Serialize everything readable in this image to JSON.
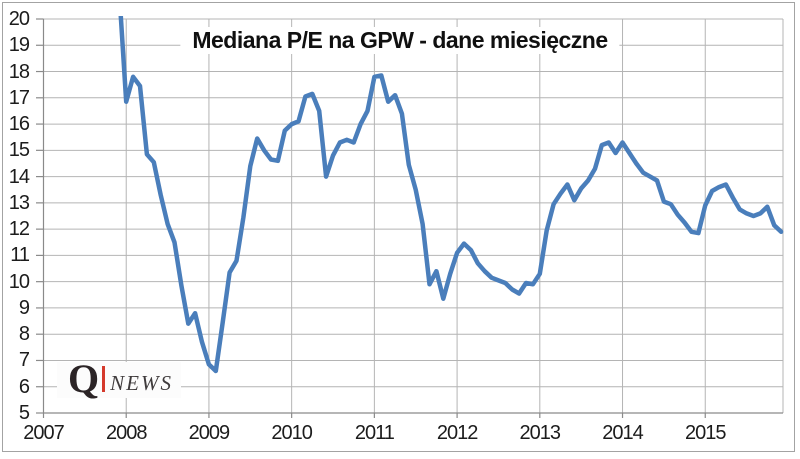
{
  "title": "Mediana P/E na GPW - dane miesięczne",
  "logo": {
    "q": "Q",
    "news": "NEWS",
    "bar_color": "#d53a2c"
  },
  "colors": {
    "line": "#4A7EBB",
    "grid": "#b4b4b4",
    "axis": "#8a8a8a",
    "border": "#a3a3a3",
    "label": "#1c1c1c"
  },
  "chart_data": {
    "type": "line",
    "title": "Mediana P/E na GPW - dane miesięczne",
    "xlabel": "",
    "ylabel": "",
    "grid": true,
    "legend": "none",
    "xlim": [
      2007,
      2015.94
    ],
    "ylim": [
      5,
      20
    ],
    "x_ticks": [
      2007,
      2008,
      2009,
      2010,
      2011,
      2012,
      2013,
      2014,
      2015
    ],
    "y_ticks": [
      5,
      6,
      7,
      8,
      9,
      10,
      11,
      12,
      13,
      14,
      15,
      16,
      17,
      18,
      19,
      20
    ],
    "clip_to_plot": true,
    "series": [
      {
        "name": "Mediana P/E",
        "start": "2007-12",
        "frequency": "monthly",
        "line_width": 4.5,
        "values": [
          21.0,
          16.85,
          17.8,
          17.45,
          14.85,
          14.55,
          13.3,
          12.2,
          11.5,
          9.85,
          8.4,
          8.8,
          7.7,
          6.85,
          6.6,
          8.45,
          10.35,
          10.8,
          12.45,
          14.4,
          15.45,
          15.0,
          14.65,
          14.6,
          15.75,
          16.0,
          16.1,
          17.05,
          17.15,
          16.5,
          14.0,
          14.8,
          15.3,
          15.4,
          15.3,
          16.0,
          16.5,
          17.8,
          17.85,
          16.85,
          17.1,
          16.4,
          14.45,
          13.5,
          12.2,
          9.9,
          10.4,
          9.35,
          10.3,
          11.1,
          11.45,
          11.2,
          10.7,
          10.4,
          10.15,
          10.05,
          9.95,
          9.7,
          9.55,
          9.95,
          9.9,
          10.3,
          11.95,
          12.95,
          13.35,
          13.7,
          13.1,
          13.55,
          13.85,
          14.3,
          15.2,
          15.3,
          14.9,
          15.3,
          14.9,
          14.5,
          14.15,
          14.0,
          13.85,
          13.05,
          12.95,
          12.55,
          12.25,
          11.9,
          11.85,
          12.9,
          13.45,
          13.6,
          13.7,
          13.2,
          12.75,
          12.6,
          12.5,
          12.6,
          12.85,
          12.15,
          11.9
        ]
      }
    ]
  }
}
